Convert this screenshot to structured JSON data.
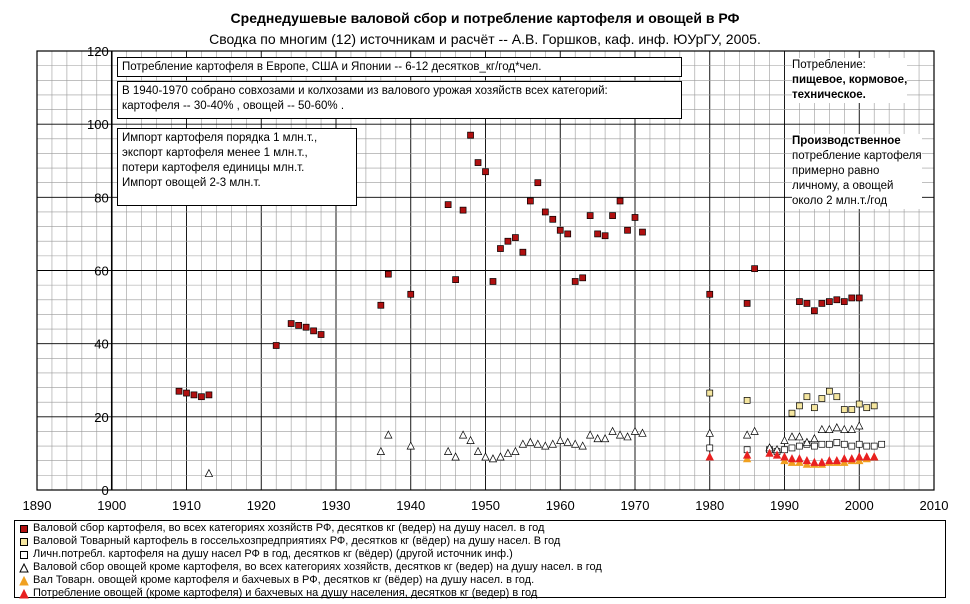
{
  "title": "Среднедушевые валовой сбор и потребление картофеля и овощей  в РФ",
  "subtitle": "Сводка по многим (12) источникам и расчёт -- А.В. Горшков, каф. инф. ЮУрГУ, 2005.",
  "notes": {
    "note1": "Потребление картофеля в Европе, США и Японии -- 6-12 десятков_кг/год*чел.",
    "note2_line1": "В 1940-1970 собрано совхозами и колхозами из валового урожая хозяйств всех категорий:",
    "note2_line2": "картофеля -- 30-40% , овощей -- 50-60% .",
    "note3_lines": [
      "Импорт картофеля порядка 1 млн.т.,",
      "экспорт картофеля менее 1 млн.т.,",
      "потери картофеля единицы млн.т.",
      "Импорт овощей 2-3 млн.т."
    ]
  },
  "side": {
    "consumption_title": "Потребление:",
    "consumption_types": "пищевое, кормовое,",
    "consumption_types2": "техническое.",
    "production_title": "Производственное",
    "production_l1": "потребление картофеля",
    "production_l2": "примерно равно",
    "production_l3": "личному, а овощей",
    "production_l4": "около 2 млн.т./год"
  },
  "chart_data": {
    "type": "scatter",
    "xlim": [
      1890,
      2010
    ],
    "ylim": [
      0,
      120
    ],
    "x_ticks": [
      1890,
      1900,
      1910,
      1920,
      1930,
      1940,
      1950,
      1960,
      1970,
      1980,
      1990,
      2000,
      2010
    ],
    "y_ticks": [
      0,
      20,
      40,
      60,
      80,
      100,
      120
    ],
    "grid": true,
    "legend_placement": "bottom",
    "series": [
      {
        "name": "Валовой сбор картофеля, во всех категориях хозяйств РФ, десятков кг (ведер) на душу насел. в год",
        "marker": "square",
        "color": "#b01010",
        "stroke": "#000000",
        "x": [
          1909,
          1910,
          1911,
          1912,
          1913,
          1922,
          1924,
          1925,
          1926,
          1927,
          1928,
          1936,
          1937,
          1940,
          1945,
          1946,
          1947,
          1948,
          1949,
          1950,
          1951,
          1952,
          1953,
          1954,
          1955,
          1956,
          1957,
          1958,
          1959,
          1960,
          1961,
          1962,
          1963,
          1964,
          1965,
          1966,
          1967,
          1968,
          1969,
          1970,
          1971,
          1980,
          1985,
          1986,
          1992,
          1993,
          1994,
          1995,
          1996,
          1997,
          1998,
          1999,
          2000
        ],
        "y": [
          27,
          26.5,
          26,
          25.5,
          26,
          39.5,
          45.5,
          45,
          44.5,
          43.5,
          42.5,
          50.5,
          59,
          53.5,
          78,
          57.5,
          76.5,
          97,
          89.5,
          87,
          57,
          66,
          68,
          69,
          65,
          79,
          84,
          76,
          74,
          71,
          70,
          57,
          58,
          75,
          70,
          69.5,
          75,
          79,
          71,
          74.5,
          70.5,
          53.5,
          51,
          60.5,
          51.5,
          51,
          49,
          51,
          51.5,
          52,
          51.5,
          52.5,
          52.5
        ]
      },
      {
        "name": "Валовой Товарный картофель в госсельхозпредприятиях РФ, десятков кг (вёдер) на душу насел. В год",
        "marker": "square",
        "color": "#f5e6a0",
        "stroke": "#000000",
        "x": [
          1980,
          1985,
          1991,
          1992,
          1993,
          1994,
          1995,
          1996,
          1997,
          1998,
          1999,
          2000,
          2001,
          2002
        ],
        "y": [
          26.5,
          24.5,
          21,
          23,
          25.5,
          22.5,
          25,
          27,
          25.5,
          22,
          22,
          23.5,
          22.5,
          23
        ]
      },
      {
        "name": "Личн.потребл. картофеля на душу насел РФ в год, десятков кг (вёдер) (другой источник инф.)",
        "marker": "square",
        "color": "#ffffff",
        "stroke": "#000000",
        "x": [
          1980,
          1985,
          1988,
          1989,
          1990,
          1991,
          1992,
          1993,
          1994,
          1995,
          1996,
          1997,
          1998,
          1999,
          2000,
          2001,
          2002,
          2003
        ],
        "y": [
          11.5,
          11,
          11,
          10.5,
          11,
          11.5,
          12,
          12.5,
          12,
          12.5,
          12.5,
          13,
          12.5,
          12,
          12.5,
          12,
          12,
          12.5
        ]
      },
      {
        "name": "Валовой сбор овощей кроме картофеля, во всех категориях хозяйств, десятков кг (ведер) на душу насел. в год",
        "marker": "triangle",
        "color": "#ffffff",
        "stroke": "#000000",
        "x": [
          1913,
          1936,
          1937,
          1940,
          1945,
          1946,
          1947,
          1948,
          1949,
          1950,
          1951,
          1952,
          1953,
          1954,
          1955,
          1956,
          1957,
          1958,
          1959,
          1960,
          1961,
          1962,
          1963,
          1964,
          1965,
          1966,
          1967,
          1968,
          1969,
          1970,
          1971,
          1980,
          1985,
          1986,
          1988,
          1989,
          1990,
          1991,
          1992,
          1993,
          1994,
          1995,
          1996,
          1997,
          1998,
          1999,
          2000
        ],
        "y": [
          4.5,
          10.5,
          15,
          12,
          10.5,
          9,
          15,
          13.5,
          10.5,
          9,
          8.5,
          9,
          10,
          10.5,
          12.5,
          13,
          12.5,
          12,
          12.5,
          13.5,
          13,
          12.5,
          12,
          15,
          14,
          14,
          16,
          15,
          14.5,
          16,
          15.5,
          15.5,
          15,
          16,
          11.5,
          11,
          13.5,
          14.5,
          14.5,
          13,
          14,
          16.5,
          16.5,
          17,
          16.5,
          16.5,
          17.5
        ]
      },
      {
        "name": "Вал Товарн. овощей кроме картофеля и бахчевых в РФ, десятков кг (вёдер) на душу насел. в год.",
        "marker": "triangle",
        "color": "#f0a020",
        "stroke": "#f0a020",
        "x": [
          1985,
          1990,
          1991,
          1992,
          1993,
          1994,
          1995,
          1996,
          1997,
          1998,
          1999,
          2000,
          2001,
          2002
        ],
        "y": [
          8.5,
          8,
          7.5,
          7.5,
          7,
          7,
          7,
          7.5,
          7.5,
          7.5,
          8,
          8,
          8.5,
          9
        ]
      },
      {
        "name": "Потребление овощей (кроме картофеля) и бахчевых на душу населения, десятков кг (ведер) в год",
        "marker": "triangle",
        "color": "#e82020",
        "stroke": "#e82020",
        "x": [
          1980,
          1985,
          1988,
          1989,
          1990,
          1991,
          1992,
          1993,
          1994,
          1995,
          1996,
          1997,
          1998,
          1999,
          2000,
          2001,
          2002
        ],
        "y": [
          9,
          9.5,
          10,
          9.5,
          9,
          8.5,
          8.5,
          8,
          7.5,
          7.5,
          8,
          8,
          8.5,
          8.5,
          9,
          9,
          9
        ]
      }
    ]
  }
}
